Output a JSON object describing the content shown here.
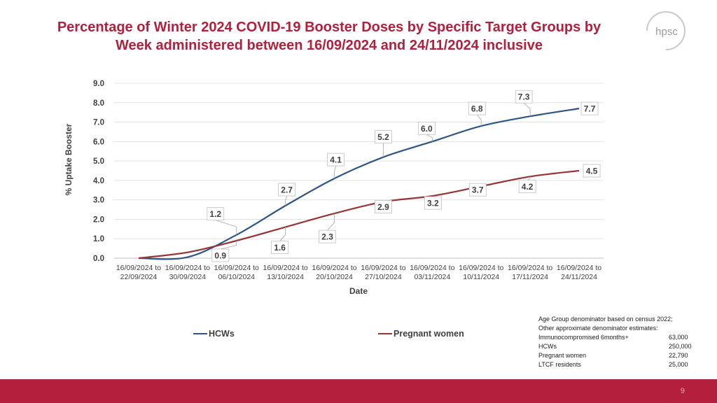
{
  "title_line1": "Percentage of Winter 2024 COVID-19 Booster Doses by Specific Target Groups by",
  "title_line2": "Week administered between 16/09/2024 and 24/11/2024 inclusive",
  "logo_text": "hpsc",
  "page_number": "9",
  "colors": {
    "brand": "#b31f3c",
    "hcws": "#2e5685",
    "pregnant": "#963537"
  },
  "chart_data": {
    "type": "line",
    "title": "",
    "xlabel": "Date",
    "ylabel": "% Uptake Booster",
    "ylim": [
      0,
      9
    ],
    "yticks": [
      "0.0",
      "1.0",
      "2.0",
      "3.0",
      "4.0",
      "5.0",
      "6.0",
      "7.0",
      "8.0",
      "9.0"
    ],
    "categories": [
      [
        "16/09/2024 to",
        "22/09/2024"
      ],
      [
        "16/09/2024 to",
        "30/09/2024"
      ],
      [
        "16/09/2024 to",
        "06/10/2024"
      ],
      [
        "16/09/2024 to",
        "13/10/2024"
      ],
      [
        "16/09/2024 to",
        "20/10/2024"
      ],
      [
        "16/09/2024 to",
        "27/10/2024"
      ],
      [
        "16/09/2024 to",
        "03/11/2024"
      ],
      [
        "16/09/2024 to",
        "10/11/2024"
      ],
      [
        "16/09/2024 to",
        "17/11/2024"
      ],
      [
        "16/09/2024 to",
        "24/11/2024"
      ]
    ],
    "series": [
      {
        "name": "HCWs",
        "values": [
          0.0,
          0.05,
          1.2,
          2.7,
          4.1,
          5.2,
          6.0,
          6.8,
          7.3,
          7.7
        ],
        "labels": [
          null,
          null,
          "1.2",
          "2.7",
          "4.1",
          "5.2",
          "6.0",
          "6.8",
          "7.3",
          "7.7"
        ]
      },
      {
        "name": "Pregnant women",
        "values": [
          0.0,
          0.3,
          0.9,
          1.6,
          2.3,
          2.9,
          3.2,
          3.7,
          4.2,
          4.5
        ],
        "labels": [
          null,
          null,
          "0.9",
          "1.6",
          "2.3",
          "2.9",
          "3.2",
          "3.7",
          "4.2",
          "4.5"
        ]
      }
    ],
    "legend": [
      "HCWs",
      "Pregnant women"
    ],
    "grid": true
  },
  "note": {
    "line1": "Age Group denominator based on census 2022;",
    "line2": "Other approximate denominator estimates:",
    "rows": [
      {
        "label": "Immunocompromised 6months+",
        "value": "63,000"
      },
      {
        "label": "HCWs",
        "value": "250,000"
      },
      {
        "label": "Pregnant women",
        "value": "22,790"
      },
      {
        "label": "LTCF residents",
        "value": "25,000"
      }
    ]
  }
}
